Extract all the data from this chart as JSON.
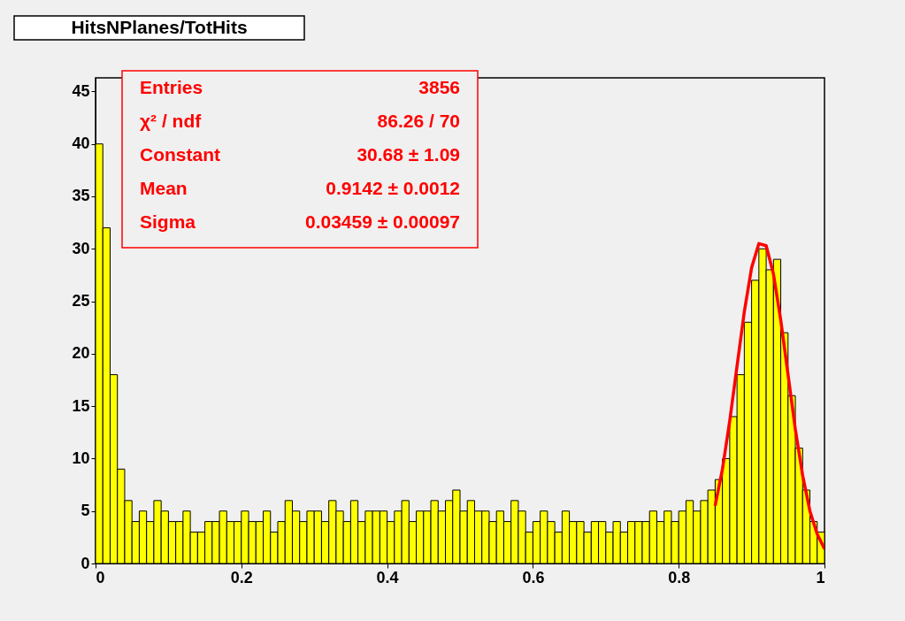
{
  "chart_data": {
    "type": "histogram",
    "title": "HitsNPlanes/TotHits",
    "bins": [
      0,
      0.01,
      0.02,
      0.03,
      0.04,
      0.05,
      0.06,
      0.07,
      0.08,
      0.09,
      0.1,
      0.11,
      0.12,
      0.13,
      0.14,
      0.15,
      0.16,
      0.17,
      0.18,
      0.19,
      0.2,
      0.21,
      0.22,
      0.23,
      0.24,
      0.25,
      0.26,
      0.27,
      0.28,
      0.29,
      0.3,
      0.31,
      0.32,
      0.33,
      0.34,
      0.35,
      0.36,
      0.37,
      0.38,
      0.39,
      0.4,
      0.41,
      0.42,
      0.43,
      0.44,
      0.45,
      0.46,
      0.47,
      0.48,
      0.49,
      0.5,
      0.51,
      0.52,
      0.53,
      0.54,
      0.55,
      0.56,
      0.57,
      0.58,
      0.59,
      0.6,
      0.61,
      0.62,
      0.63,
      0.64,
      0.65,
      0.66,
      0.67,
      0.68,
      0.69,
      0.7,
      0.71,
      0.72,
      0.73,
      0.74,
      0.75,
      0.76,
      0.77,
      0.78,
      0.79,
      0.8,
      0.81,
      0.82,
      0.83,
      0.84,
      0.85,
      0.86,
      0.87,
      0.88,
      0.89,
      0.9,
      0.91,
      0.92,
      0.93,
      0.94,
      0.95,
      0.96,
      0.97,
      0.98,
      0.99,
      1
    ],
    "values": [
      40,
      32,
      18,
      9,
      6,
      4,
      5,
      4,
      6,
      5,
      4,
      4,
      5,
      3,
      3,
      4,
      4,
      5,
      4,
      4,
      5,
      4,
      4,
      5,
      3,
      4,
      6,
      5,
      4,
      5,
      5,
      4,
      6,
      5,
      4,
      6,
      4,
      5,
      5,
      5,
      4,
      5,
      6,
      4,
      5,
      5,
      6,
      5,
      6,
      7,
      5,
      6,
      5,
      5,
      4,
      5,
      4,
      6,
      5,
      3,
      4,
      5,
      4,
      3,
      5,
      4,
      4,
      3,
      4,
      4,
      3,
      4,
      3,
      4,
      4,
      4,
      5,
      4,
      5,
      4,
      5,
      6,
      5,
      6,
      7,
      8,
      10,
      14,
      18,
      23,
      27,
      30,
      28,
      29,
      22,
      16,
      11,
      7,
      4,
      3
    ],
    "color": "#ffff00",
    "series": [
      {
        "type": "line",
        "color": "#ff0000",
        "x": [
          0.85,
          0.86,
          0.87,
          0.88,
          0.89,
          0.9,
          0.91,
          0.92,
          0.93,
          0.94,
          0.95,
          0.96,
          0.97,
          0.98,
          0.99,
          1.0
        ],
        "values": [
          5.5,
          9,
          13.6,
          18.8,
          24,
          28.2,
          30.5,
          30.3,
          27.6,
          23.2,
          18,
          12.8,
          8.4,
          5,
          2.8,
          1.4
        ]
      }
    ],
    "xlim": [
      0,
      1
    ],
    "ylim": [
      0,
      46.3
    ],
    "xticks": [
      0,
      0.2,
      0.4,
      0.6,
      0.8,
      1
    ],
    "yticks": [
      0,
      5,
      10,
      15,
      20,
      25,
      30,
      35,
      40,
      45
    ],
    "annotations": [
      "Entries",
      "3856",
      "χ² / ndf",
      "86.26 / 70",
      "Constant",
      "30.68 ± 1.09",
      "Mean",
      "0.9142 ± 0.0012",
      "Sigma",
      "0.03459 ± 0.00097"
    ]
  }
}
